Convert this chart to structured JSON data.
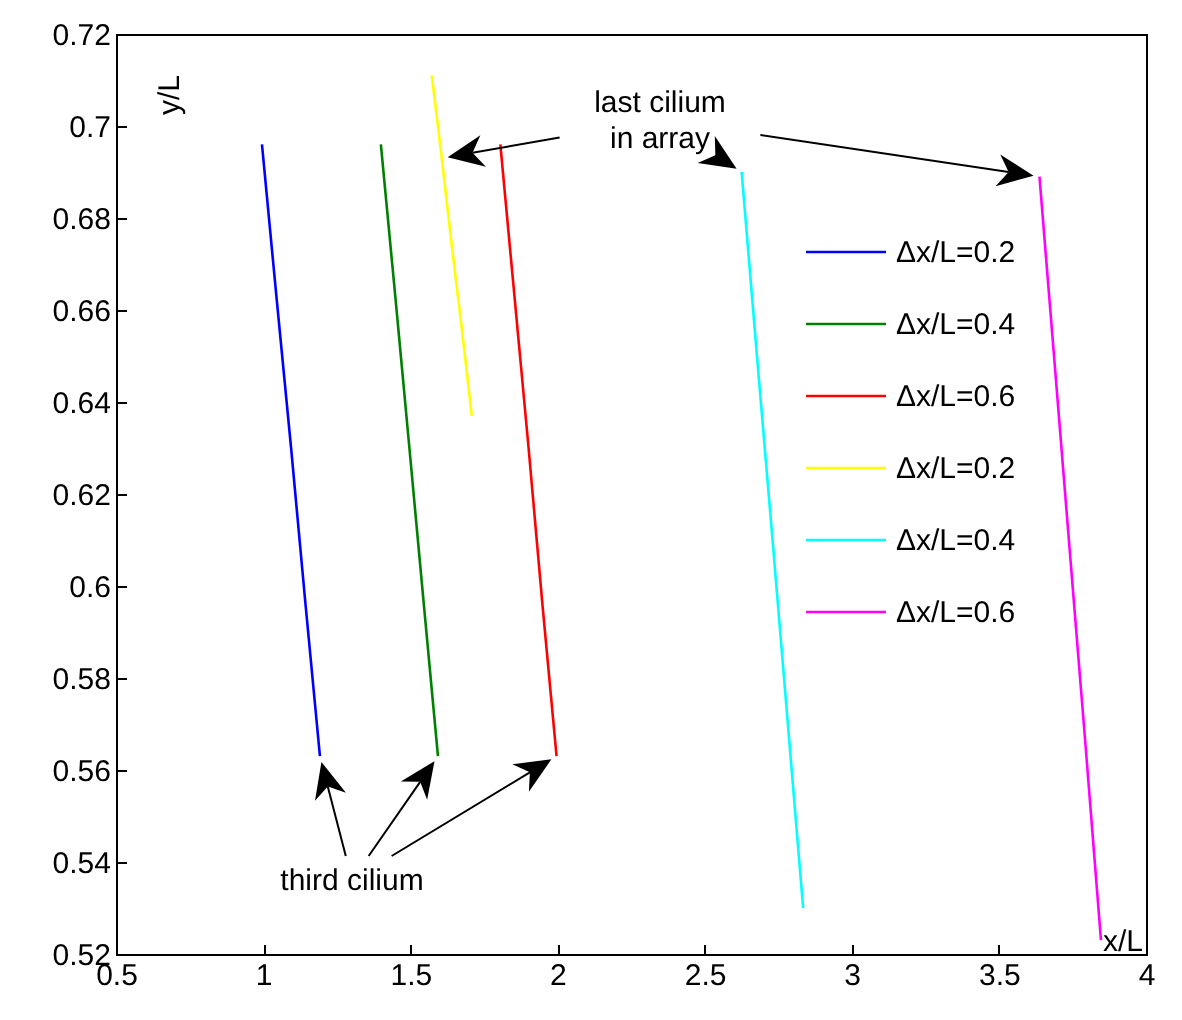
{
  "chart_data": {
    "type": "line",
    "xlabel": "x/L",
    "ylabel": "y/L",
    "xlim": [
      0.5,
      4
    ],
    "xticks": [
      0.5,
      1,
      1.5,
      2,
      2.5,
      3,
      3.5,
      4
    ],
    "ylim": [
      0.52,
      0.72
    ],
    "yticks": [
      0.52,
      0.54,
      0.56,
      0.58,
      0.6,
      0.62,
      0.64,
      0.66,
      0.68,
      0.7,
      0.72
    ],
    "grid": false,
    "legend": "top right",
    "line_style": "solid",
    "marker": "none",
    "annotations": [
      "third cilium",
      "last cilium in array"
    ],
    "series": [
      {
        "name": "Δx/L=0.2",
        "color": "#0000ff",
        "x": [
          0.996,
          1.045,
          1.095,
          1.144,
          1.193
        ],
        "values": [
          0.696,
          0.663,
          0.63,
          0.596,
          0.563
        ]
      },
      {
        "name": "Δx/L=0.4",
        "color": "#008000",
        "x": [
          1.4,
          1.449,
          1.497,
          1.546,
          1.594
        ],
        "values": [
          0.696,
          0.663,
          0.63,
          0.596,
          0.563
        ]
      },
      {
        "name": "Δx/L=0.6",
        "color": "#ff0000",
        "x": [
          1.806,
          1.854,
          1.902,
          1.949,
          1.997
        ],
        "values": [
          0.696,
          0.663,
          0.63,
          0.596,
          0.563
        ]
      },
      {
        "name": "Δx/L=0.2",
        "color": "#ffff00",
        "x": [
          1.573,
          1.607,
          1.641,
          1.675,
          1.709
        ],
        "values": [
          0.711,
          0.693,
          0.674,
          0.656,
          0.637
        ]
      },
      {
        "name": "Δx/L=0.4",
        "color": "#00ffff",
        "x": [
          2.626,
          2.678,
          2.731,
          2.783,
          2.835
        ],
        "values": [
          0.69,
          0.65,
          0.61,
          0.57,
          0.53
        ]
      },
      {
        "name": "Δx/L=0.6",
        "color": "#ff00ff",
        "x": [
          3.638,
          3.69,
          3.743,
          3.795,
          3.847
        ],
        "values": [
          0.689,
          0.648,
          0.606,
          0.565,
          0.523
        ]
      }
    ]
  }
}
